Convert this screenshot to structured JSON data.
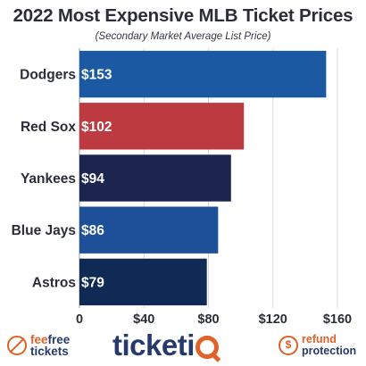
{
  "title": "2022 Most Expensive MLB Ticket Prices",
  "subtitle": "(Secondary Market Average List Price)",
  "chart_data": {
    "type": "bar",
    "orientation": "horizontal",
    "title": "2022 Most Expensive MLB Ticket Prices",
    "subtitle": "(Secondary Market Average List Price)",
    "categories": [
      "Dodgers",
      "Red Sox",
      "Yankees",
      "Blue Jays",
      "Astros"
    ],
    "values": [
      153,
      102,
      94,
      86,
      79
    ],
    "value_labels": [
      "$153",
      "$102",
      "$94",
      "$86",
      "$79"
    ],
    "bar_colors": [
      "#1b5aa3",
      "#be3a41",
      "#1c2550",
      "#1e4f99",
      "#0f2a55"
    ],
    "xlim": [
      0,
      160
    ],
    "xticks": [
      0,
      40,
      80,
      120,
      160
    ],
    "xtick_labels": [
      "0",
      "$40",
      "$80",
      "$120",
      "$160"
    ],
    "xlabel": "",
    "ylabel": "",
    "grid": true,
    "legend": "none"
  },
  "footer": {
    "left_badge": {
      "line1": "feefree",
      "line1_accent": "fee",
      "line2": "tickets",
      "icon": "no-fee-icon"
    },
    "brand": {
      "main": "ticket",
      "accent": "Q",
      "icon": "magnifier-icon"
    },
    "right_badge": {
      "line1": "refund",
      "line2": "protection",
      "icon": "dollar-shield-icon"
    }
  },
  "colors": {
    "gridline": "#d9d9d9",
    "label_text": "#2b2e36",
    "brand_navy": "#263a6b",
    "brand_orange": "#e0622a"
  }
}
